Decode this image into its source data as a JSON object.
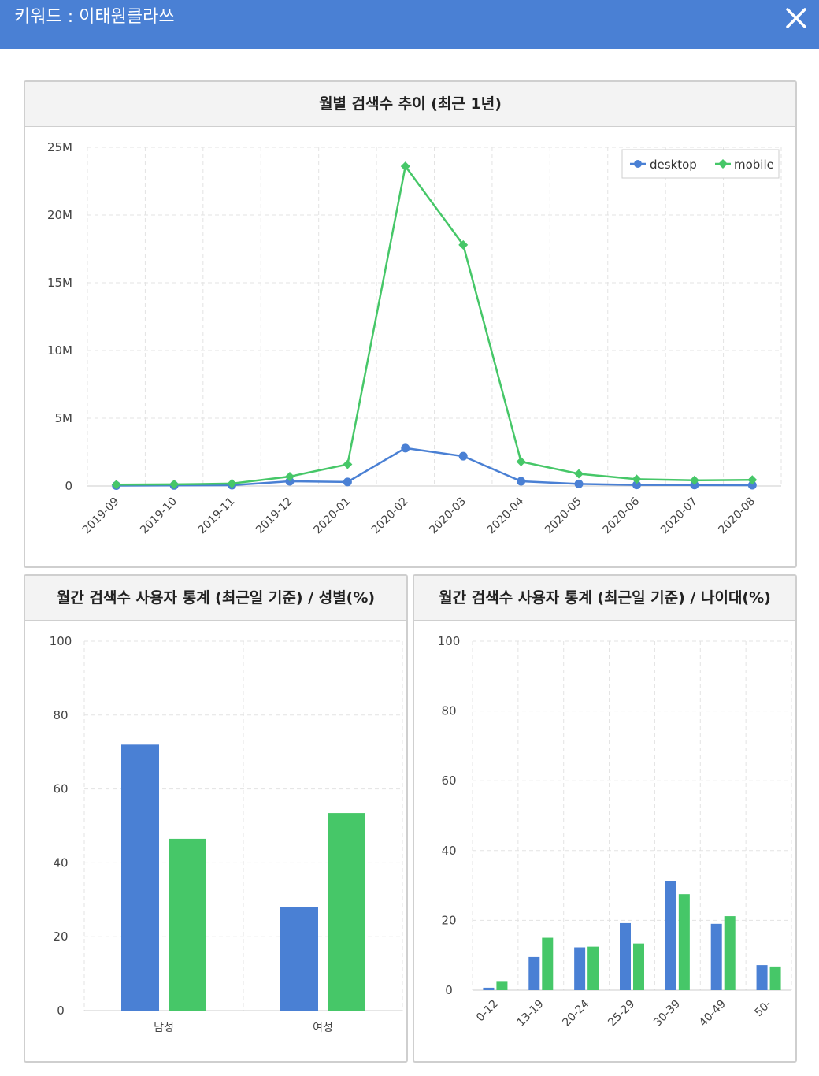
{
  "header": {
    "title": "키워드 : 이태원클라쓰"
  },
  "colors": {
    "header": "#4a80d4",
    "desktop": "#4a80d4",
    "mobile": "#46c768",
    "grid": "#e3e3e3"
  },
  "legend": {
    "desktop": "desktop",
    "mobile": "mobile"
  },
  "chart_data": [
    {
      "type": "line",
      "title": "월별 검색수 추이 (최근 1년)",
      "x": [
        "2019-09",
        "2019-10",
        "2019-11",
        "2019-12",
        "2020-01",
        "2020-02",
        "2020-03",
        "2020-04",
        "2020-05",
        "2020-06",
        "2020-07",
        "2020-08"
      ],
      "yticks": [
        "0",
        "5M",
        "10M",
        "15M",
        "20M",
        "25M"
      ],
      "ylim": [
        0,
        25000000
      ],
      "series": [
        {
          "name": "desktop",
          "values": [
            30000,
            40000,
            60000,
            350000,
            300000,
            2800000,
            2200000,
            350000,
            150000,
            80000,
            70000,
            60000
          ]
        },
        {
          "name": "mobile",
          "values": [
            100000,
            120000,
            180000,
            700000,
            1600000,
            23600000,
            17800000,
            1800000,
            900000,
            500000,
            420000,
            450000
          ]
        }
      ],
      "legend_position": "top-right"
    },
    {
      "type": "bar",
      "title": "월간 검색수 사용자 통계 (최근일 기준) / 성별(%)",
      "categories": [
        "남성",
        "여성"
      ],
      "yticks": [
        "0",
        "20",
        "40",
        "60",
        "80",
        "100"
      ],
      "ylim": [
        0,
        100
      ],
      "series": [
        {
          "name": "desktop",
          "values": [
            72,
            28
          ]
        },
        {
          "name": "mobile",
          "values": [
            46.5,
            53.5
          ]
        }
      ]
    },
    {
      "type": "bar",
      "title": "월간 검색수 사용자 통계 (최근일 기준) / 나이대(%)",
      "categories": [
        "0-12",
        "13-19",
        "20-24",
        "25-29",
        "30-39",
        "40-49",
        "50-"
      ],
      "yticks": [
        "0",
        "20",
        "40",
        "60",
        "80",
        "100"
      ],
      "ylim": [
        0,
        100
      ],
      "series": [
        {
          "name": "desktop",
          "values": [
            0.7,
            9.5,
            12.3,
            19.2,
            31.2,
            19,
            7.2
          ]
        },
        {
          "name": "mobile",
          "values": [
            2.4,
            15,
            12.5,
            13.4,
            27.5,
            21.2,
            6.8
          ]
        }
      ]
    }
  ]
}
